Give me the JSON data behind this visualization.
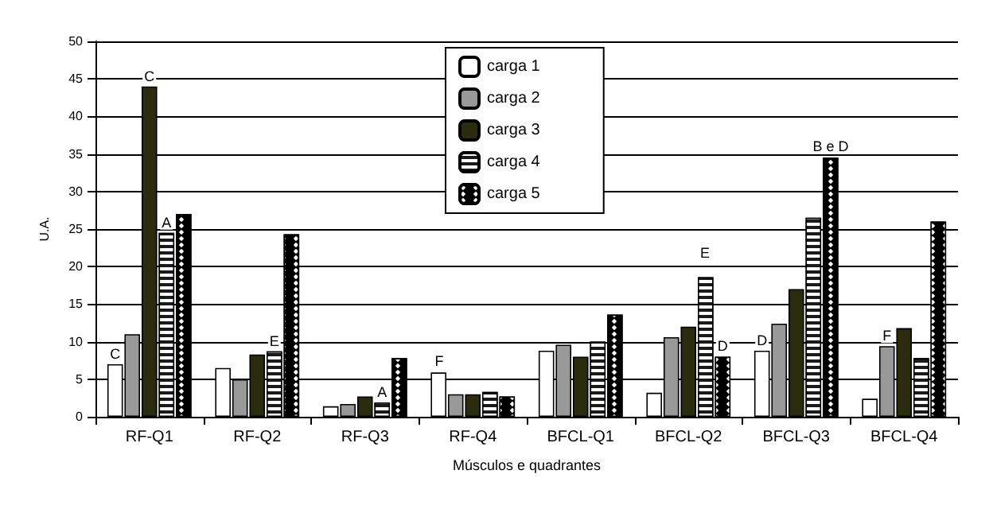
{
  "chart_data": {
    "type": "bar",
    "xlabel": "Músculos e quadrantes",
    "ylabel": "U.A.",
    "categories": [
      "RF-Q1",
      "RF-Q2",
      "RF-Q3",
      "RF-Q4",
      "BFCL-Q1",
      "BFCL-Q2",
      "BFCL-Q3",
      "BFCL-Q4"
    ],
    "series": [
      {
        "name": "carga 1",
        "color": "#ffffff",
        "values": [
          7,
          6.5,
          1.4,
          5.9,
          8.8,
          3.2,
          8.8,
          2.4
        ]
      },
      {
        "name": "carga 2",
        "color": "#999999",
        "values": [
          11,
          5,
          1.7,
          3,
          9.6,
          10.6,
          12.4,
          9.4
        ]
      },
      {
        "name": "carga 3",
        "color": "#2b2b10",
        "values": [
          44,
          8.3,
          2.7,
          3,
          8,
          12,
          17,
          11.8
        ]
      },
      {
        "name": "carga 4",
        "color": "#1a1a1a",
        "values": [
          24.5,
          8.7,
          1.9,
          3.3,
          10,
          18.6,
          26.5,
          7.8
        ]
      },
      {
        "name": "carga 5",
        "color": "#000000",
        "values": [
          27,
          24.3,
          7.8,
          2.7,
          13.6,
          8,
          34.5,
          26
        ]
      }
    ],
    "ylim": [
      0,
      50
    ],
    "yticks": [
      0,
      5,
      10,
      15,
      20,
      25,
      30,
      35,
      40,
      45,
      50
    ],
    "grid": "y",
    "legend": "top",
    "annotations": [
      {
        "text": "C",
        "x": "RF-Q1",
        "y": 7
      },
      {
        "text": "C",
        "x": "RF-Q1",
        "y": 44
      },
      {
        "text": "A",
        "x": "RF-Q1",
        "y": 24.5
      },
      {
        "text": "E",
        "x": "RF-Q2",
        "y": 8.7
      },
      {
        "text": "A",
        "x": "RF-Q3",
        "y": 1.9
      },
      "F",
      "E",
      {
        "text": "D",
        "x": "BFCL-Q2",
        "y": 8
      },
      {
        "text": "D",
        "x": "BFCL-Q3",
        "y": 8.8
      },
      "B e D",
      {
        "text": "F",
        "x": "BFCL-Q4",
        "y": 9.4
      }
    ]
  }
}
